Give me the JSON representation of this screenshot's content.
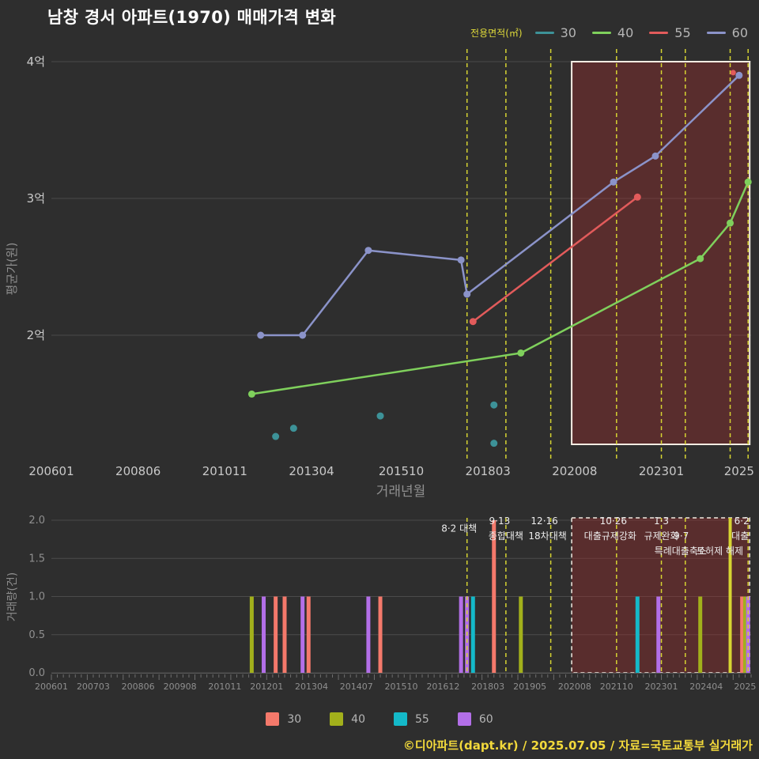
{
  "title": "남창 경서 아파트(1970) 매매가격 변화",
  "footer": "©디아파트(dapt.kr) / 2025.07.05 / 자료=국토교통부 실거래가",
  "colors": {
    "background": "#2e2e2e",
    "grid": "#4b4b4b",
    "axis_text": "#c9c9c9",
    "axis_text_dim": "#8f8f8f",
    "policy_line": "#d6d432",
    "annotation_text": "#ececec",
    "highlight_fill": "rgba(150,45,45,0.42)",
    "highlight_border": "#f2ece2",
    "footer_text": "#f2d93b"
  },
  "chart_data": [
    {
      "type": "line",
      "title": "매매가격 변화",
      "xlabel": "거래년월",
      "ylabel": "평균가(원)",
      "x_range": [
        200601,
        202507
      ],
      "ylim": [
        1.1,
        4.1
      ],
      "y_unit": "억",
      "grid": true,
      "y_ticks": [
        {
          "v": 2,
          "label": "2억"
        },
        {
          "v": 3,
          "label": "3억"
        },
        {
          "v": 4,
          "label": "4억"
        }
      ],
      "x_ticks": [
        {
          "m": 200601,
          "label": "200601"
        },
        {
          "m": 200806,
          "label": "200806"
        },
        {
          "m": 201011,
          "label": "201011"
        },
        {
          "m": 201304,
          "label": "201304"
        },
        {
          "m": 201510,
          "label": "201510"
        },
        {
          "m": 201803,
          "label": "201803"
        },
        {
          "m": 202008,
          "label": "202008"
        },
        {
          "m": 202301,
          "label": "202301"
        },
        {
          "m": 202503,
          "label": "2025"
        }
      ],
      "legend": {
        "title": "전용면적(㎡)",
        "position": "top-right",
        "items": [
          {
            "label": "30",
            "color": "#3d9298"
          },
          {
            "label": "40",
            "color": "#7fd05c"
          },
          {
            "label": "55",
            "color": "#e25b5b"
          },
          {
            "label": "60",
            "color": "#8b93c9"
          }
        ]
      },
      "series": [
        {
          "name": "30",
          "color": "#3d9298",
          "mode": "scatter",
          "points": [
            [
              201204,
              1.26
            ],
            [
              201210,
              1.32
            ],
            [
              201503,
              1.41
            ],
            [
              201805,
              1.49
            ],
            [
              201805,
              1.21
            ]
          ]
        },
        {
          "name": "40",
          "color": "#7fd05c",
          "mode": "line",
          "points": [
            [
              201108,
              1.57
            ],
            [
              201902,
              1.87
            ],
            [
              202402,
              2.56
            ],
            [
              202412,
              2.82
            ],
            [
              202506,
              3.12
            ]
          ]
        },
        {
          "name": "55",
          "color": "#e25b5b",
          "mode": "line",
          "points": [
            [
              201710,
              2.1
            ],
            [
              202205,
              3.01
            ]
          ],
          "isolated_points": [
            [
              202501,
              3.92
            ]
          ]
        },
        {
          "name": "60",
          "color": "#8b93c9",
          "mode": "line",
          "points": [
            [
              201111,
              2.0
            ],
            [
              201301,
              2.0
            ],
            [
              201411,
              2.62
            ],
            [
              201706,
              2.55
            ],
            [
              201708,
              2.3
            ],
            [
              202109,
              3.12
            ],
            [
              202211,
              3.31
            ],
            [
              202503,
              3.9
            ]
          ]
        }
      ],
      "highlight_region": {
        "start": 202007,
        "end": 202506
      }
    },
    {
      "type": "bar",
      "ylabel": "거래량(건)",
      "ylim": [
        0,
        2
      ],
      "grid": true,
      "y_ticks": [
        {
          "v": 0,
          "label": "0.0"
        },
        {
          "v": 0.5,
          "label": "0.5"
        },
        {
          "v": 1,
          "label": "1.0"
        },
        {
          "v": 1.5,
          "label": "1.5"
        },
        {
          "v": 2,
          "label": "2.0"
        }
      ],
      "x_ticks": [
        {
          "m": 200601,
          "label": "200601"
        },
        {
          "m": 200703,
          "label": "200703"
        },
        {
          "m": 200806,
          "label": "200806"
        },
        {
          "m": 200908,
          "label": "200908"
        },
        {
          "m": 201011,
          "label": "201011"
        },
        {
          "m": 201201,
          "label": "201201"
        },
        {
          "m": 201304,
          "label": "201304"
        },
        {
          "m": 201407,
          "label": "201407"
        },
        {
          "m": 201510,
          "label": "201510"
        },
        {
          "m": 201612,
          "label": "201612"
        },
        {
          "m": 201803,
          "label": "201803"
        },
        {
          "m": 201905,
          "label": "201905"
        },
        {
          "m": 202008,
          "label": "202008"
        },
        {
          "m": 202110,
          "label": "202110"
        },
        {
          "m": 202301,
          "label": "202301"
        },
        {
          "m": 202404,
          "label": "202404"
        },
        {
          "m": 202505,
          "label": "2025"
        }
      ],
      "bar_colors": {
        "30": "#f4796b",
        "40": "#a2b01b",
        "55": "#14b9c9",
        "60": "#b36fe8"
      },
      "bars": [
        {
          "month": 201108,
          "size": "40",
          "value": 1
        },
        {
          "month": 201112,
          "size": "60",
          "value": 1
        },
        {
          "month": 201204,
          "size": "30",
          "value": 1
        },
        {
          "month": 201207,
          "size": "30",
          "value": 1
        },
        {
          "month": 201301,
          "size": "60",
          "value": 1
        },
        {
          "month": 201303,
          "size": "30",
          "value": 1
        },
        {
          "month": 201411,
          "size": "60",
          "value": 1
        },
        {
          "month": 201503,
          "size": "30",
          "value": 1
        },
        {
          "month": 201706,
          "size": "60",
          "value": 1
        },
        {
          "month": 201708,
          "size": "60",
          "value": 1
        },
        {
          "month": 201710,
          "size": "55",
          "value": 1
        },
        {
          "month": 201805,
          "size": "30",
          "value": 2
        },
        {
          "month": 201902,
          "size": "40",
          "value": 1
        },
        {
          "month": 202205,
          "size": "55",
          "value": 1
        },
        {
          "month": 202212,
          "size": "60",
          "value": 1
        },
        {
          "month": 202402,
          "size": "40",
          "value": 1
        },
        {
          "month": 202504,
          "size": "30",
          "value": 1
        },
        {
          "month": 202505,
          "size": "40",
          "value": 1
        },
        {
          "month": 202506,
          "size": "60",
          "value": 1
        }
      ],
      "highlight_region": {
        "start": 202007,
        "end": 202506
      }
    }
  ],
  "policies": [
    {
      "month": 201708,
      "style": "dashed",
      "labels": [
        {
          "text": "8·2 대책",
          "row": 0.5,
          "dx": -10
        }
      ]
    },
    {
      "month": 201809,
      "style": "dashed",
      "labels": [
        {
          "text": "9·13",
          "row": 0,
          "dx": -8
        },
        {
          "text": "종합대책",
          "row": 1,
          "dx": 0
        }
      ]
    },
    {
      "month": 201912,
      "style": "dashed",
      "labels": [
        {
          "text": "12·16",
          "row": 0,
          "dx": -8
        },
        {
          "text": "18차대책",
          "row": 1,
          "dx": -4
        }
      ]
    },
    {
      "month": 202110,
      "style": "dashed",
      "labels": [
        {
          "text": "10·26",
          "row": 0,
          "dx": -4
        },
        {
          "text": "대출규제강화",
          "row": 1,
          "dx": -8
        }
      ]
    },
    {
      "month": 202301,
      "style": "dashed",
      "labels": [
        {
          "text": "1·3",
          "row": 0,
          "dx": 0
        },
        {
          "text": "규제완화",
          "row": 1,
          "dx": 0
        }
      ]
    },
    {
      "month": 202309,
      "style": "dashed",
      "labels": [
        {
          "text": "9·7",
          "row": 1,
          "dx": -5
        },
        {
          "text": "특례대출축소",
          "row": 2,
          "dx": -6
        }
      ]
    },
    {
      "month": 202412,
      "style": "solid",
      "labels": [
        {
          "text": "토허제 해제",
          "row": 2,
          "dx": -13
        }
      ]
    },
    {
      "month": 202506,
      "style": "dashed",
      "labels": [
        {
          "text": "6·2",
          "row": 0,
          "dx": -8
        },
        {
          "text": "대출",
          "row": 1,
          "dx": -10
        }
      ]
    }
  ],
  "volume_legend": [
    {
      "label": "30",
      "color": "#f4796b"
    },
    {
      "label": "40",
      "color": "#a2b01b"
    },
    {
      "label": "55",
      "color": "#14b9c9"
    },
    {
      "label": "60",
      "color": "#b36fe8"
    }
  ]
}
